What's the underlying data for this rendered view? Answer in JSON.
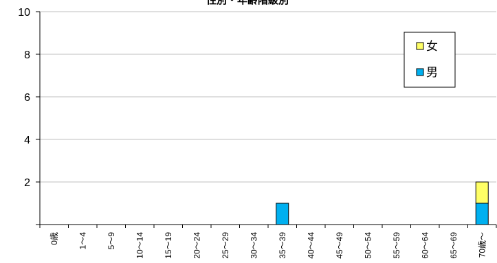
{
  "chart_data": {
    "type": "bar",
    "stacked": true,
    "title": "性別・年齢階級別",
    "categories": [
      "0歳",
      "1～4",
      "5～9",
      "10～14",
      "15～19",
      "20～24",
      "25～29",
      "30～34",
      "35～39",
      "40～44",
      "45～49",
      "50～54",
      "55～59",
      "60～64",
      "65～69",
      "70歳～"
    ],
    "series": [
      {
        "name": "男",
        "color": "#00b0f0",
        "values": [
          0,
          0,
          0,
          0,
          0,
          0,
          0,
          0,
          1,
          0,
          0,
          0,
          0,
          0,
          0,
          1
        ]
      },
      {
        "name": "女",
        "color": "#ffff66",
        "values": [
          0,
          0,
          0,
          0,
          0,
          0,
          0,
          0,
          0,
          0,
          0,
          0,
          0,
          0,
          0,
          1
        ]
      }
    ],
    "ylim": [
      0,
      10
    ],
    "yticks": [
      0,
      2,
      4,
      6,
      8,
      10
    ],
    "ytick_labels": [
      "",
      "2",
      "4",
      "6",
      "8",
      "10"
    ],
    "grid": true,
    "legend": {
      "position": "top-right",
      "order": [
        "女",
        "男"
      ]
    }
  }
}
